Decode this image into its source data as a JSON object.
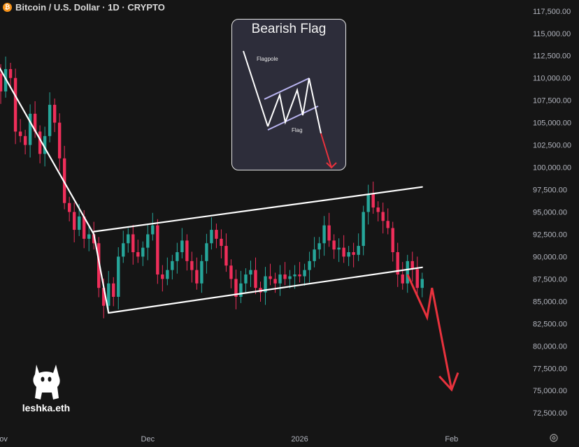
{
  "header": {
    "coin_icon": "bitcoin-icon",
    "coin_glyph": "₿",
    "title": "Bitcoin / U.S. Dollar · 1D · CRYPTO"
  },
  "inset": {
    "title": "Bearish Flag",
    "flagpole_label": "Flagpole",
    "flag_label": "Flag"
  },
  "watermark": {
    "icon": "cat-icon",
    "text": "leshka.eth"
  },
  "settings_icon": "gear-icon",
  "colors": {
    "up": "#26a69a",
    "down": "#ef2e5a",
    "trend": "#ffffff",
    "projection": "#e8323d",
    "axis_text": "#b2b5be",
    "background": "#151515"
  },
  "chart_data": {
    "type": "candlestick",
    "title": "Bitcoin / U.S. Dollar · 1D · CRYPTO",
    "y_ticks": [
      "117,500.00",
      "115,000.00",
      "112,500.00",
      "110,000.00",
      "107,500.00",
      "105,000.00",
      "102,500.00",
      "100,000.00",
      "97,500.00",
      "95,000.00",
      "92,500.00",
      "90,000.00",
      "87,500.00",
      "85,000.00",
      "82,500.00",
      "80,000.00",
      "77,500.00",
      "75,000.00",
      "72,500.00"
    ],
    "y_tick_values": [
      117500,
      115000,
      112500,
      110000,
      107500,
      105000,
      102500,
      100000,
      97500,
      95000,
      92500,
      90000,
      87500,
      85000,
      82500,
      80000,
      77500,
      75000,
      72500
    ],
    "x_labels": [
      {
        "label": "Nov",
        "date": "2025-11-01"
      },
      {
        "label": "Dec",
        "date": "2025-12-01"
      },
      {
        "label": "2026",
        "date": "2026-01-01"
      },
      {
        "label": "Feb",
        "date": "2026-02-01"
      }
    ],
    "x_range": [
      "2025-10-25",
      "2026-02-23"
    ],
    "y_range": [
      71500,
      118500
    ],
    "closes": [
      110500,
      111800,
      113500,
      115000,
      114500,
      113000,
      110500,
      108500,
      111000,
      110000,
      104000,
      103500,
      102500,
      106000,
      104000,
      101500,
      103500,
      107000,
      105000,
      101000,
      96000,
      95000,
      93000,
      94500,
      92000,
      92500,
      91500,
      86500,
      84500,
      87000,
      85500,
      90000,
      91500,
      92500,
      90500,
      90000,
      91000,
      92500,
      93500,
      88000,
      87500,
      88500,
      89500,
      90500,
      91800,
      89500,
      88500,
      87000,
      89500,
      91500,
      93000,
      92000,
      91200,
      89000,
      87500,
      85500,
      87000,
      88000,
      88500,
      86500,
      86000,
      87800,
      87500,
      87000,
      88000,
      87500,
      87800,
      88000,
      87800,
      88500,
      89500,
      90800,
      91500,
      93500,
      91800,
      90800,
      91000,
      90000,
      90500,
      90200,
      91200,
      95000,
      97000,
      95500,
      95000,
      94000,
      93200,
      90500,
      88000,
      87000,
      89500,
      88600,
      86500,
      87500
    ],
    "trendlines": [
      {
        "name": "flagpole",
        "points": [
          [
            "2025-10-26",
            116700
          ],
          [
            "2025-11-20",
            92500
          ]
        ]
      },
      {
        "name": "flag-top",
        "points": [
          [
            "2025-11-20",
            92800
          ],
          [
            "2026-01-26",
            97800
          ]
        ]
      },
      {
        "name": "flag-bottom",
        "points": [
          [
            "2025-11-23",
            83700
          ],
          [
            "2026-01-26",
            88800
          ]
        ]
      },
      {
        "name": "pole-to-flag",
        "points": [
          [
            "2025-11-20",
            92500
          ],
          [
            "2025-11-23",
            83700
          ]
        ]
      }
    ],
    "projection": [
      [
        "2026-01-23",
        88000
      ],
      [
        "2026-01-27",
        83200
      ],
      [
        "2026-01-28",
        86500
      ],
      [
        "2026-02-01",
        75100
      ]
    ],
    "grid": false,
    "legend": "none"
  }
}
